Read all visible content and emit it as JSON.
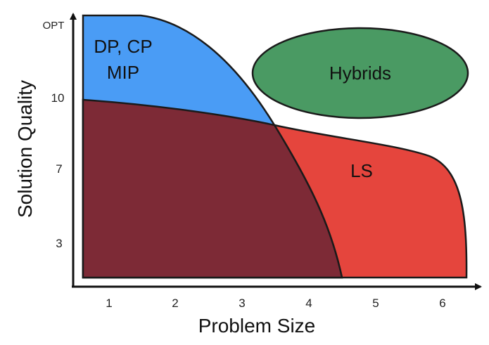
{
  "axes": {
    "x_title": "Problem Size",
    "y_title": "Solution Quality",
    "x_ticks": [
      "1",
      "2",
      "3",
      "4",
      "5",
      "6"
    ],
    "y_ticks": [
      "3",
      "7",
      "10",
      "OPT"
    ]
  },
  "regions": {
    "exact": {
      "label_line1": "DP, CP",
      "label_line2": "MIP",
      "color": "#4a9cf5"
    },
    "local_search": {
      "label": "LS",
      "color": "#e5453d"
    },
    "overlap": {
      "color": "#7d2a36"
    },
    "hybrids": {
      "label": "Hybrids",
      "color": "#4a9a63"
    }
  },
  "colors": {
    "axis": "#111111",
    "outline": "#1a1a1a"
  }
}
